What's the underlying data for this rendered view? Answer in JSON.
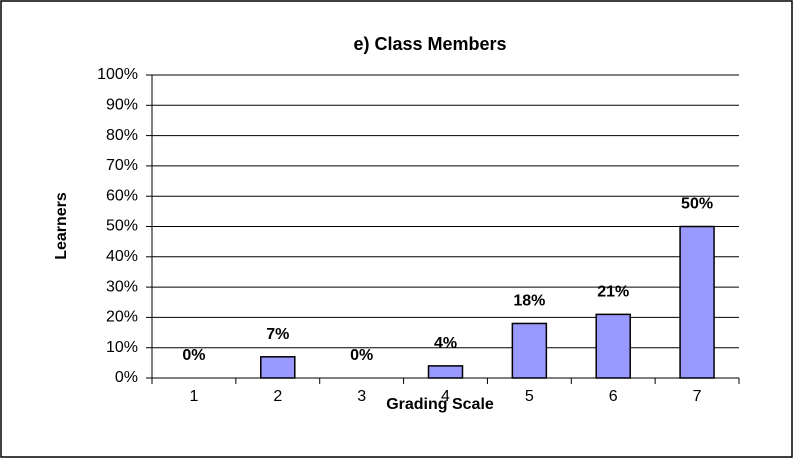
{
  "chart_data": {
    "type": "bar",
    "title": "e)  Class Members",
    "x_label": "Grading Scale",
    "y_label": "Learners",
    "categories": [
      "1",
      "2",
      "3",
      "4",
      "5",
      "6",
      "7"
    ],
    "values": [
      0,
      7,
      0,
      4,
      18,
      21,
      50
    ],
    "value_labels": [
      "0%",
      "7%",
      "0%",
      "4%",
      "18%",
      "21%",
      "50%"
    ],
    "color": "#9999ff",
    "ylim": [
      0,
      100
    ],
    "yticks": [
      {
        "value": 0,
        "label": "0%"
      },
      {
        "value": 10,
        "label": "10%"
      },
      {
        "value": 20,
        "label": "20%"
      },
      {
        "value": 30,
        "label": "30%"
      },
      {
        "value": 40,
        "label": "40%"
      },
      {
        "value": 50,
        "label": "50%"
      },
      {
        "value": 60,
        "label": "60%"
      },
      {
        "value": 70,
        "label": "70%"
      },
      {
        "value": 80,
        "label": "80%"
      },
      {
        "value": 90,
        "label": "90%"
      },
      {
        "value": 100,
        "label": "100%"
      }
    ],
    "grid": true
  }
}
